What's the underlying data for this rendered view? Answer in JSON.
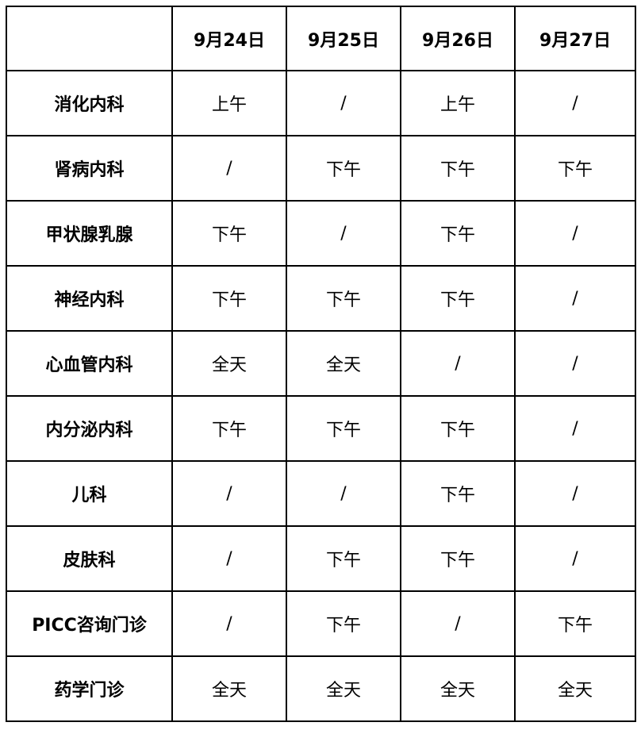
{
  "table": {
    "corner": "",
    "dates": [
      "9月24日",
      "9月25日",
      "9月26日",
      "9月27日"
    ],
    "rows": [
      {
        "department": "消化内科",
        "cells": [
          "上午",
          "/",
          "上午",
          "/"
        ]
      },
      {
        "department": "肾病内科",
        "cells": [
          "/",
          "下午",
          "下午",
          "下午"
        ]
      },
      {
        "department": "甲状腺乳腺",
        "cells": [
          "下午",
          "/",
          "下午",
          "/"
        ]
      },
      {
        "department": "神经内科",
        "cells": [
          "下午",
          "下午",
          "下午",
          "/"
        ]
      },
      {
        "department": "心血管内科",
        "cells": [
          "全天",
          "全天",
          "/",
          "/"
        ]
      },
      {
        "department": "内分泌内科",
        "cells": [
          "下午",
          "下午",
          "下午",
          "/"
        ]
      },
      {
        "department": "儿科",
        "cells": [
          "/",
          "/",
          "下午",
          "/"
        ]
      },
      {
        "department": "皮肤科",
        "cells": [
          "/",
          "下午",
          "下午",
          "/"
        ]
      },
      {
        "department": "PICC咨询门诊",
        "cells": [
          "/",
          "下午",
          "/",
          "下午"
        ]
      },
      {
        "department": "药学门诊",
        "cells": [
          "全天",
          "全天",
          "全天",
          "全天"
        ]
      }
    ]
  }
}
